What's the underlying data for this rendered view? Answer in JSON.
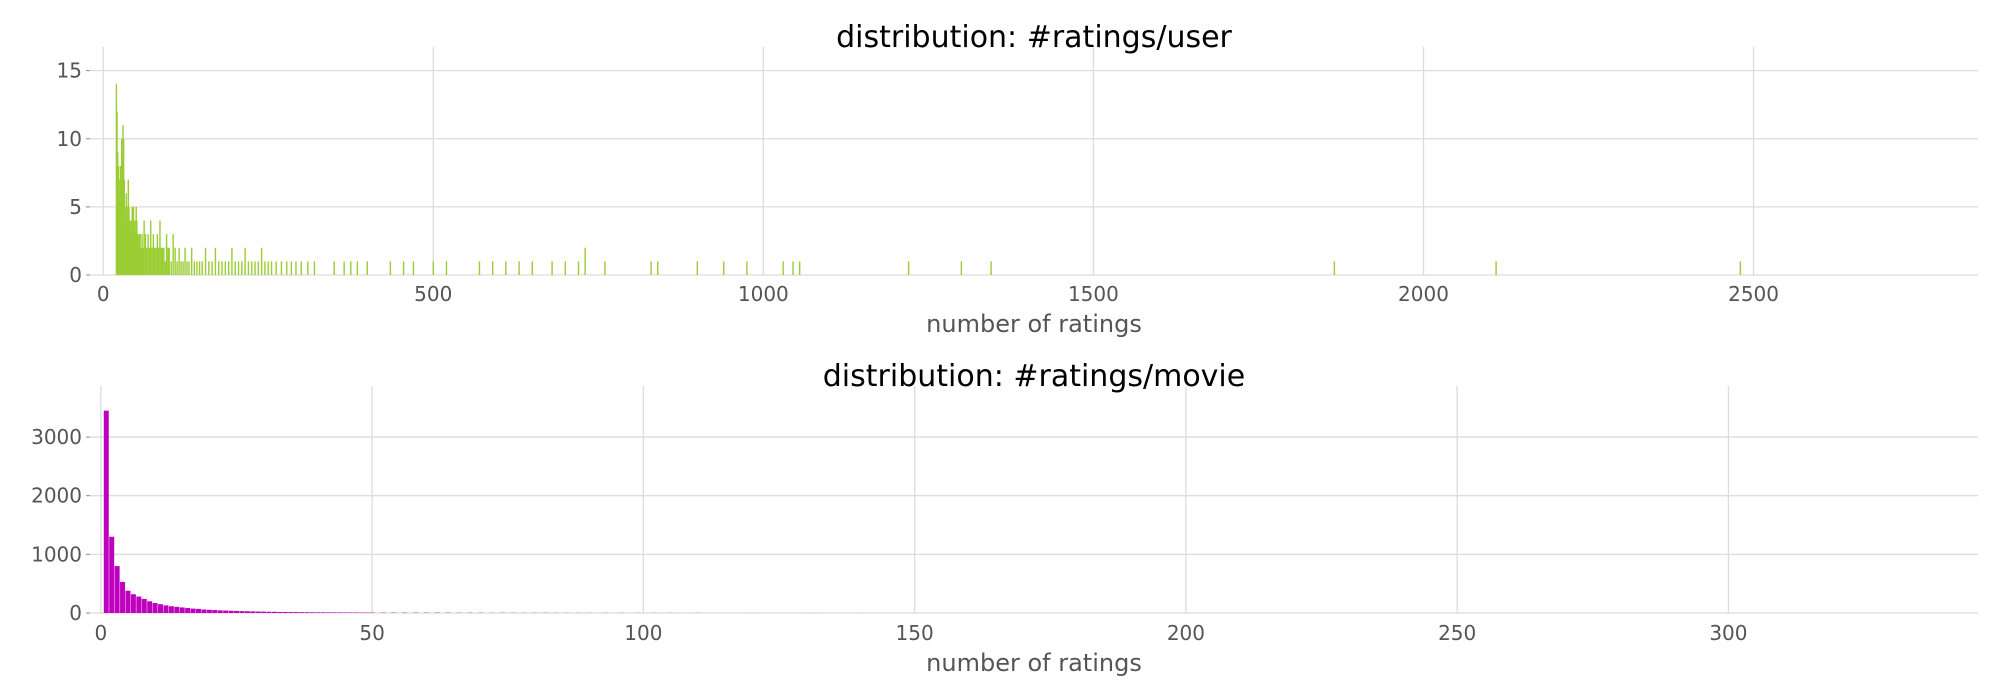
{
  "chart_data": [
    {
      "type": "bar",
      "title": "distribution: #ratings/user",
      "xlabel": "number of ratings",
      "ylabel": "",
      "color": "#9acd32",
      "xlim": [
        -20,
        2840
      ],
      "ylim": [
        0,
        16
      ],
      "xticks": [
        0,
        500,
        1000,
        1500,
        2000,
        2500
      ],
      "yticks": [
        0,
        5,
        10,
        15
      ],
      "bar_width": 1,
      "x": [
        20,
        21,
        22,
        23,
        24,
        25,
        26,
        27,
        28,
        29,
        30,
        31,
        32,
        33,
        34,
        35,
        36,
        37,
        38,
        39,
        40,
        41,
        42,
        43,
        44,
        45,
        46,
        47,
        48,
        49,
        50,
        51,
        52,
        53,
        54,
        55,
        56,
        57,
        58,
        59,
        60,
        62,
        64,
        66,
        68,
        70,
        72,
        74,
        76,
        78,
        80,
        82,
        84,
        86,
        88,
        90,
        92,
        94,
        96,
        98,
        100,
        103,
        106,
        109,
        112,
        115,
        118,
        121,
        124,
        127,
        130,
        134,
        138,
        142,
        146,
        150,
        155,
        160,
        165,
        170,
        175,
        180,
        185,
        190,
        195,
        200,
        205,
        210,
        215,
        220,
        225,
        230,
        235,
        240,
        245,
        250,
        255,
        262,
        270,
        278,
        285,
        292,
        300,
        310,
        320,
        350,
        365,
        375,
        385,
        400,
        435,
        455,
        470,
        500,
        520,
        570,
        590,
        610,
        630,
        650,
        680,
        700,
        720,
        730,
        760,
        830,
        840,
        900,
        940,
        975,
        1030,
        1045,
        1055,
        1220,
        1300,
        1345,
        1865,
        2110,
        2480
      ],
      "values": [
        14,
        12,
        9,
        8,
        7,
        6,
        8,
        7,
        10,
        9,
        11,
        10,
        7,
        5,
        4,
        6,
        5,
        4,
        7,
        5,
        4,
        3,
        4,
        3,
        5,
        4,
        5,
        3,
        4,
        3,
        5,
        4,
        3,
        2,
        3,
        2,
        3,
        2,
        2,
        3,
        2,
        4,
        3,
        2,
        3,
        2,
        4,
        2,
        3,
        2,
        2,
        3,
        2,
        4,
        2,
        2,
        2,
        1,
        3,
        2,
        2,
        1,
        3,
        2,
        1,
        2,
        1,
        1,
        2,
        1,
        1,
        2,
        1,
        1,
        1,
        1,
        2,
        1,
        1,
        2,
        1,
        1,
        1,
        1,
        2,
        1,
        1,
        1,
        2,
        1,
        1,
        1,
        1,
        2,
        1,
        1,
        1,
        1,
        1,
        1,
        1,
        1,
        1,
        1,
        1,
        1,
        1,
        1,
        1,
        1,
        1,
        1,
        1,
        1,
        1,
        1,
        1,
        1,
        1,
        1,
        1,
        1,
        1,
        2,
        1,
        1,
        1,
        1,
        1,
        1,
        1,
        1,
        1,
        1,
        1,
        1,
        1,
        1,
        1
      ]
    },
    {
      "type": "bar",
      "title": "distribution: #ratings/movie",
      "xlabel": "number of ratings",
      "ylabel": "",
      "color": "#bf00bf",
      "xlim": [
        -2,
        346
      ],
      "ylim": [
        0,
        3700
      ],
      "xticks": [
        0,
        50,
        100,
        150,
        200,
        250,
        300
      ],
      "yticks": [
        0,
        1000,
        2000,
        3000
      ],
      "bar_width": 1,
      "x": [
        1,
        2,
        3,
        4,
        5,
        6,
        7,
        8,
        9,
        10,
        11,
        12,
        13,
        14,
        15,
        16,
        17,
        18,
        19,
        20,
        21,
        22,
        23,
        24,
        25,
        26,
        27,
        28,
        29,
        30,
        31,
        32,
        33,
        34,
        35,
        36,
        37,
        38,
        39,
        40,
        41,
        42,
        43,
        44,
        45,
        46,
        47,
        48,
        49,
        50,
        52,
        54,
        56,
        58,
        60,
        62,
        64,
        66,
        68,
        70,
        72,
        74,
        76,
        78,
        80,
        82,
        84,
        86,
        88,
        90,
        93,
        96,
        99,
        102,
        105,
        110,
        120,
        130,
        132,
        140
      ],
      "values": [
        3450,
        1300,
        800,
        530,
        380,
        320,
        280,
        240,
        200,
        170,
        150,
        130,
        115,
        105,
        95,
        85,
        75,
        70,
        60,
        55,
        50,
        45,
        42,
        38,
        35,
        32,
        30,
        27,
        25,
        23,
        21,
        20,
        18,
        17,
        16,
        15,
        14,
        13,
        12,
        11,
        11,
        10,
        10,
        9,
        9,
        8,
        8,
        7,
        7,
        7,
        6,
        6,
        5,
        5,
        5,
        5,
        4,
        4,
        4,
        4,
        3,
        3,
        3,
        3,
        3,
        3,
        2,
        2,
        2,
        2,
        2,
        2,
        2,
        2,
        2,
        2,
        1,
        1,
        1,
        1
      ]
    }
  ]
}
